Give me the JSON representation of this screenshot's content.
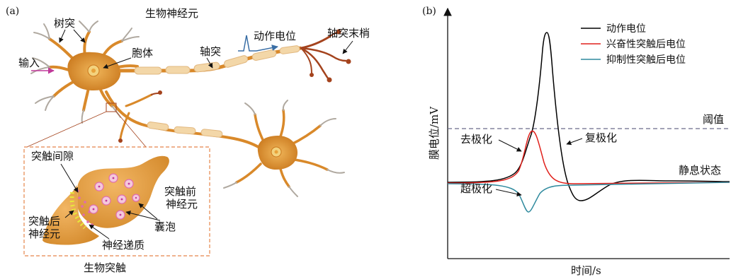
{
  "panel_a": {
    "tag": "(a)",
    "title": "生物神经元",
    "labels": {
      "dendrite": "树突",
      "input": "输入",
      "soma": "胞体",
      "axon": "轴突",
      "action_potential": "动作电位",
      "axon_terminal": "轴突末梢"
    },
    "inset": {
      "caption": "生物突触",
      "cleft": "突触间隙",
      "presynaptic": "突触前神经元",
      "postsynaptic": "突触后神经元",
      "vesicle": "囊泡",
      "neurotransmitter": "神经递质"
    },
    "colors": {
      "neuron": "#d9892a",
      "neuron_dark": "#b86d15",
      "myelin": "#f3d7a8",
      "terminal": "#a4431d",
      "dendrite_tip": "#a9a9a9",
      "inset_border": "#e5854a",
      "vesicle": "#e06bb0",
      "transmitter": "#e8e83a"
    }
  },
  "panel_b": {
    "tag": "(b)",
    "labels": {
      "depolarization": "去极化",
      "repolarization": "复极化",
      "hyperpolarization": "超极化",
      "threshold": "阈值",
      "resting": "静息状态"
    },
    "chart_data": {
      "type": "line",
      "title": "",
      "xlabel": "时间/s",
      "ylabel": "膜电位/mV",
      "legend_position": "top-right",
      "grid": false,
      "ticks": false,
      "series": [
        {
          "name": "动作电位",
          "color": "#000000"
        },
        {
          "name": "兴奋性突触后电位",
          "color": "#e0201b"
        },
        {
          "name": "抑制性突触后电位",
          "color": "#2f8a9e"
        }
      ],
      "threshold_line": {
        "label": "阈值",
        "style": "dashed",
        "color": "#6a6a8a"
      }
    }
  }
}
